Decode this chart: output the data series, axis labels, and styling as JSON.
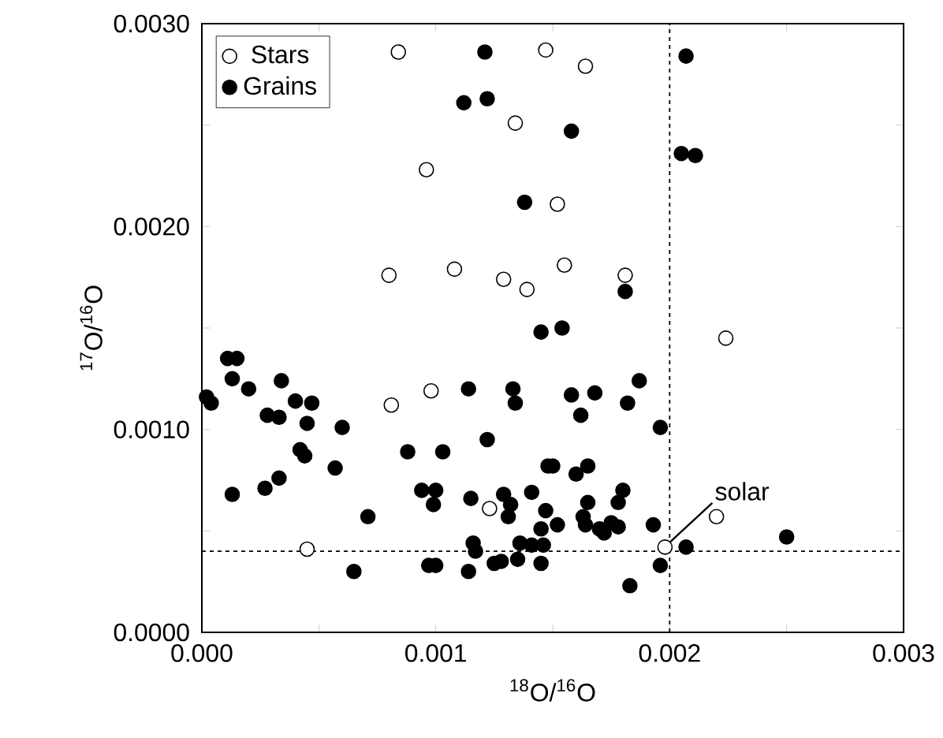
{
  "chart_data": {
    "type": "scatter",
    "xlabel": "$^{18}$O/$^{16}$O",
    "ylabel": "$^{17}$O/$^{16}$O",
    "xlim": [
      0,
      0.003
    ],
    "ylim": [
      0,
      0.003
    ],
    "xticks": [
      {
        "value": 0,
        "label": "0.000"
      },
      {
        "value": 0.0005,
        "label": null
      },
      {
        "value": 0.001,
        "label": "0.001"
      },
      {
        "value": 0.0015,
        "label": null
      },
      {
        "value": 0.002,
        "label": "0.002"
      },
      {
        "value": 0.0025,
        "label": null
      },
      {
        "value": 0.003,
        "label": "0.003"
      }
    ],
    "yticks": [
      {
        "value": 0,
        "label": "0.0000"
      },
      {
        "value": 0.0005,
        "label": null
      },
      {
        "value": 0.001,
        "label": "0.0010"
      },
      {
        "value": 0.0015,
        "label": null
      },
      {
        "value": 0.002,
        "label": "0.0020"
      },
      {
        "value": 0.0025,
        "label": null
      },
      {
        "value": 0.003,
        "label": "0.0030"
      }
    ],
    "marker": "circle",
    "legend": "top left",
    "grid": false,
    "series": [
      {
        "name": "Stars",
        "color": "#000000",
        "x": [
          0.00084,
          0.00147,
          0.00164,
          0.00134,
          0.00096,
          0.00152,
          0.0008,
          0.00108,
          0.00129,
          0.00139,
          0.00155,
          0.00181,
          0.00224,
          0.00081,
          0.00098,
          0.00123,
          0.00045,
          0.0022,
          0.00198
        ],
        "values": [
          0.00286,
          0.00287,
          0.00279,
          0.00251,
          0.00228,
          0.00211,
          0.00176,
          0.00179,
          0.00174,
          0.00169,
          0.00181,
          0.00176,
          0.00145,
          0.00112,
          0.00119,
          0.00061,
          0.00041,
          0.00057,
          0.00042
        ]
      },
      {
        "name": "Grains",
        "color": "#000000",
        "x": [
          0.00121,
          0.00112,
          0.00122,
          0.00138,
          0.00207,
          0.00158,
          0.00205,
          0.00211,
          0.00181,
          0.00145,
          0.00154,
          0.00011,
          0.00015,
          0.00013,
          0.0002,
          2e-05,
          4e-05,
          0.00034,
          0.00028,
          0.00033,
          0.0004,
          0.00047,
          0.00045,
          0.0006,
          0.00042,
          0.00044,
          0.00057,
          0.00013,
          0.00027,
          0.00033,
          0.00071,
          0.00065,
          0.00088,
          0.00103,
          0.00094,
          0.001,
          0.00099,
          0.00114,
          0.00122,
          0.00133,
          0.00134,
          0.00115,
          0.00129,
          0.00132,
          0.00131,
          0.00141,
          0.00116,
          0.00117,
          0.00097,
          0.001,
          0.00114,
          0.00125,
          0.00128,
          0.00135,
          0.00145,
          0.00136,
          0.00187,
          0.00158,
          0.00168,
          0.00162,
          0.00182,
          0.00196,
          0.0015,
          0.0016,
          0.00165,
          0.00147,
          0.00165,
          0.0018,
          0.00178,
          0.00145,
          0.00152,
          0.00163,
          0.00164,
          0.0017,
          0.00172,
          0.00175,
          0.00178,
          0.00193,
          0.00141,
          0.00146,
          0.00196,
          0.00183,
          0.00207,
          0.0025,
          0.00148
        ],
        "values": [
          0.00286,
          0.00261,
          0.00263,
          0.00212,
          0.00284,
          0.00247,
          0.00236,
          0.00235,
          0.00168,
          0.00148,
          0.0015,
          0.00135,
          0.00135,
          0.00125,
          0.0012,
          0.00116,
          0.00113,
          0.00124,
          0.00107,
          0.00106,
          0.00114,
          0.00113,
          0.00103,
          0.00101,
          0.0009,
          0.00087,
          0.00081,
          0.00068,
          0.00071,
          0.00076,
          0.00057,
          0.0003,
          0.00089,
          0.00089,
          0.0007,
          0.0007,
          0.00063,
          0.0012,
          0.00095,
          0.0012,
          0.00113,
          0.00066,
          0.00068,
          0.00063,
          0.00057,
          0.00069,
          0.00044,
          0.0004,
          0.00033,
          0.00033,
          0.0003,
          0.00034,
          0.00035,
          0.00036,
          0.00034,
          0.00044,
          0.00124,
          0.00117,
          0.00118,
          0.00107,
          0.00113,
          0.00101,
          0.00082,
          0.00078,
          0.00082,
          0.0006,
          0.00064,
          0.0007,
          0.00064,
          0.00051,
          0.00053,
          0.00057,
          0.00053,
          0.00051,
          0.00049,
          0.00054,
          0.00052,
          0.00053,
          0.00043,
          0.00043,
          0.00033,
          0.00023,
          0.00042,
          0.00047,
          0.00082
        ]
      }
    ],
    "ref_lines": [
      {
        "axis": "x",
        "value": 0.002,
        "line_style": "dotted"
      },
      {
        "axis": "y",
        "value": 0.0004,
        "line_style": "dotted"
      }
    ],
    "annotations": [
      {
        "text": "solar",
        "x": 0.00198,
        "y": 0.00042
      }
    ]
  }
}
